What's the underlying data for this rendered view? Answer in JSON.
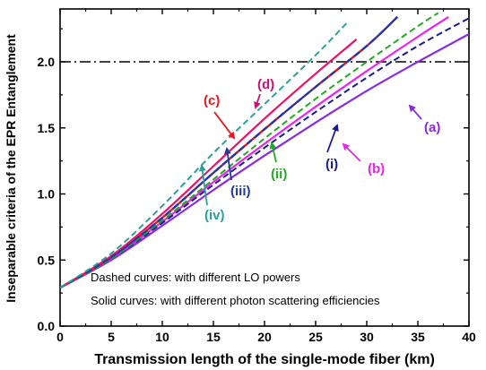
{
  "chart_data": {
    "type": "line",
    "xlabel": "Transmission length of the single-mode fiber (km)",
    "ylabel": "Inseparable criteria of the EPR Entanglement",
    "xlim": [
      0,
      40
    ],
    "ylim": [
      0,
      2.4
    ],
    "x_ticks": [
      0,
      5,
      10,
      15,
      20,
      25,
      30,
      35,
      40
    ],
    "y_ticks": [
      0.0,
      0.5,
      1.0,
      1.5,
      2.0
    ],
    "y_tick_labels": [
      "0.0",
      "0.5",
      "1.0",
      "1.5",
      "2.0"
    ],
    "threshold": {
      "y": 2.0,
      "style": "dash-dot",
      "color": "#000000"
    },
    "series": [
      {
        "name": "(a)",
        "style": "solid",
        "color": "#8a2be2",
        "x": [
          0,
          5,
          10,
          15,
          20,
          25,
          30,
          35,
          40
        ],
        "y": [
          0.29,
          0.5,
          0.76,
          1.03,
          1.29,
          1.54,
          1.78,
          2.0,
          2.21
        ]
      },
      {
        "name": "(b)",
        "style": "solid",
        "color": "#ee22ee",
        "x": [
          0,
          5,
          10,
          15,
          20,
          25,
          30,
          35,
          38
        ],
        "y": [
          0.29,
          0.51,
          0.79,
          1.09,
          1.38,
          1.66,
          1.93,
          2.19,
          2.34
        ]
      },
      {
        "name": "(c)",
        "style": "red-blue-dashed",
        "color": "#e8161e",
        "color2": "#2233cc",
        "x": [
          0,
          5,
          10,
          15,
          20,
          25,
          30,
          33
        ],
        "y": [
          0.29,
          0.52,
          0.82,
          1.16,
          1.49,
          1.81,
          2.12,
          2.34
        ]
      },
      {
        "name": "(d)",
        "style": "solid",
        "color": "#ee1166",
        "x": [
          0,
          5,
          10,
          15,
          20,
          25,
          29
        ],
        "y": [
          0.29,
          0.53,
          0.85,
          1.21,
          1.57,
          1.91,
          2.17
        ]
      },
      {
        "name": "(i)",
        "style": "dashed",
        "color": "#1a1a8c",
        "x": [
          0,
          5,
          10,
          15,
          20,
          25,
          30,
          35,
          40
        ],
        "y": [
          0.29,
          0.51,
          0.78,
          1.07,
          1.35,
          1.62,
          1.88,
          2.12,
          2.33
        ]
      },
      {
        "name": "(ii)",
        "style": "dashed",
        "color": "#22aa22",
        "x": [
          0,
          5,
          10,
          15,
          20,
          25,
          30,
          35,
          37
        ],
        "y": [
          0.29,
          0.51,
          0.8,
          1.11,
          1.42,
          1.72,
          2.0,
          2.27,
          2.37
        ]
      },
      {
        "name": "(iii)",
        "style": "dashed",
        "color": "#1e3aa0",
        "x": [
          0,
          5,
          10,
          15,
          20,
          25,
          30,
          33
        ],
        "y": [
          0.29,
          0.52,
          0.82,
          1.16,
          1.49,
          1.81,
          2.12,
          2.34
        ]
      },
      {
        "name": "(iv)",
        "style": "dashed",
        "color": "#2aa198",
        "x": [
          0,
          5,
          10,
          15,
          20,
          25,
          28
        ],
        "y": [
          0.29,
          0.55,
          0.91,
          1.31,
          1.68,
          2.05,
          2.29
        ]
      }
    ],
    "labels": [
      {
        "text": "(a)",
        "color": "#8a2be2"
      },
      {
        "text": "(b)",
        "color": "#ee22ee"
      },
      {
        "text": "(c)",
        "color": "#e8161e"
      },
      {
        "text": "(d)",
        "color": "#cc1177"
      },
      {
        "text": "(i)",
        "color": "#1a1a8c"
      },
      {
        "text": "(ii)",
        "color": "#22aa22"
      },
      {
        "text": "(iii)",
        "color": "#1e3aa0"
      },
      {
        "text": "(iv)",
        "color": "#2aa198"
      }
    ],
    "annotations": [
      "Dashed curves: with different LO powers",
      "Solid curves: with different photon scattering efficiencies"
    ]
  }
}
